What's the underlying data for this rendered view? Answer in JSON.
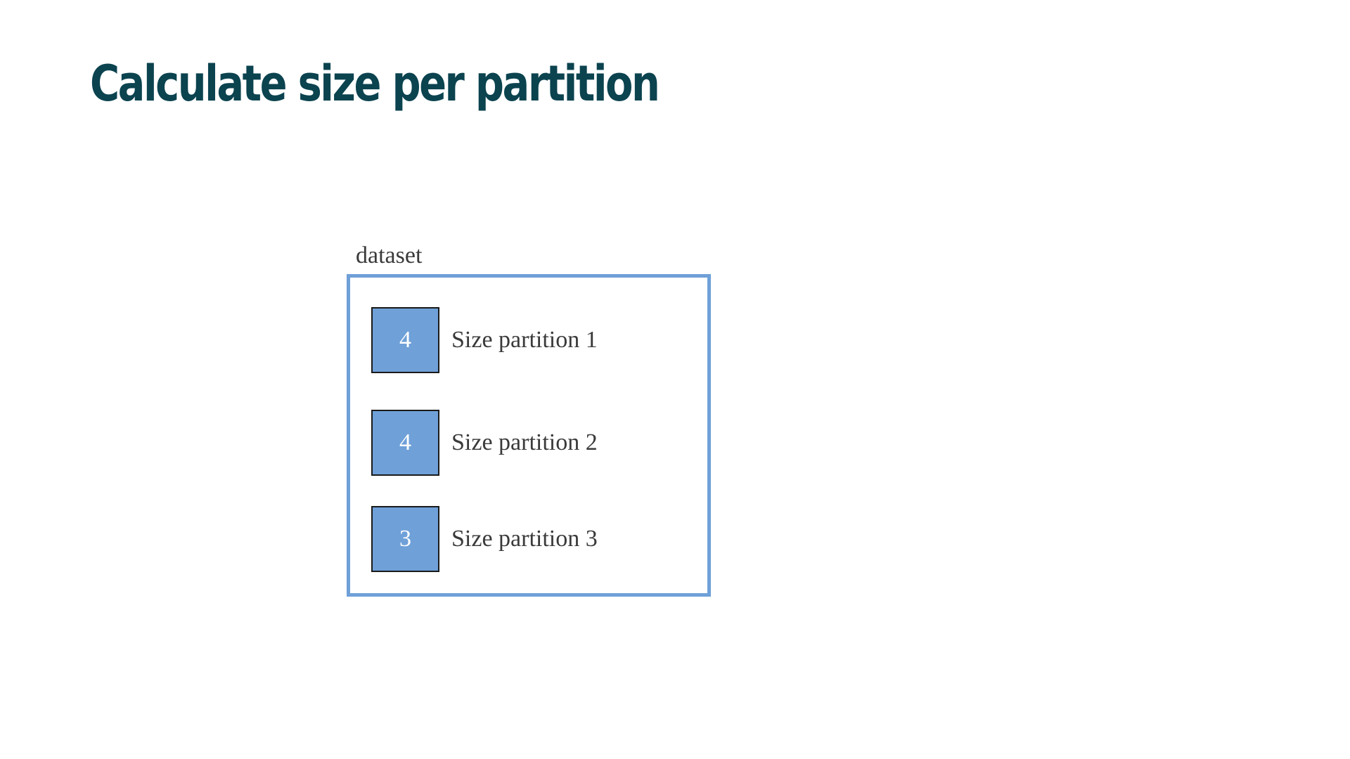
{
  "slide": {
    "title": "Calculate size per partition"
  },
  "diagram": {
    "container_label": "dataset",
    "accent_color": "#6fa0d8",
    "title_color": "#0b434f",
    "partitions": [
      {
        "size": "4",
        "label": "Size partition 1"
      },
      {
        "size": "4",
        "label": "Size partition 2"
      },
      {
        "size": "3",
        "label": "Size partition 3"
      }
    ]
  }
}
